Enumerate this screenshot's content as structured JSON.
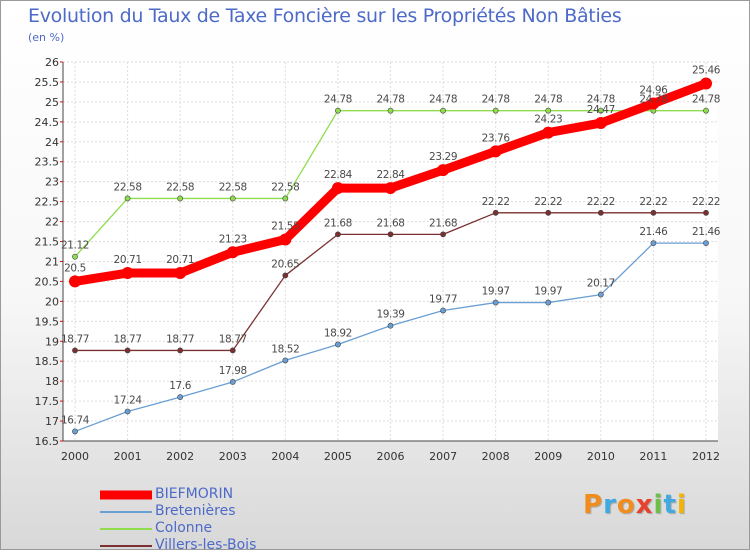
{
  "chart_data": {
    "type": "line",
    "title": "Evolution du Taux de Taxe Foncière sur les Propriétés Non Bâties",
    "ylabel": "(en %)",
    "xlabel": "",
    "ylim": [
      16.5,
      26
    ],
    "yticks": [
      "16.5",
      "17",
      "17.5",
      "18",
      "18.5",
      "19",
      "19.5",
      "20",
      "20.5",
      "21",
      "21.5",
      "22",
      "22.5",
      "23",
      "23.5",
      "24",
      "24.5",
      "25",
      "25.5",
      "26"
    ],
    "categories": [
      "2000",
      "2001",
      "2002",
      "2003",
      "2004",
      "2005",
      "2006",
      "2007",
      "2008",
      "2009",
      "2010",
      "2011",
      "2012"
    ],
    "grid": true,
    "series": [
      {
        "name": "BIEFMORIN",
        "color": "#ff0000",
        "values": [
          20.5,
          20.71,
          20.71,
          21.23,
          21.55,
          22.84,
          22.84,
          23.29,
          23.76,
          24.23,
          24.47,
          24.96,
          25.46
        ],
        "labels": [
          "20.5",
          "20.71",
          "20.71",
          "21.23",
          "21.55",
          "22.84",
          "22.84",
          "23.29",
          "23.76",
          "24.23",
          "24.47",
          "24.96",
          "25.46"
        ]
      },
      {
        "name": "Bretenières",
        "color": "#6a9fd4",
        "values": [
          16.74,
          17.24,
          17.6,
          17.98,
          18.52,
          18.92,
          19.39,
          19.77,
          19.97,
          19.97,
          20.17,
          21.46,
          21.46
        ],
        "labels": [
          "16.74",
          "17.24",
          "17.6",
          "17.98",
          "18.52",
          "18.92",
          "19.39",
          "19.77",
          "19.97",
          "19.97",
          "20.17",
          "21.46",
          "21.46"
        ]
      },
      {
        "name": "Colonne",
        "color": "#8fdc4c",
        "values": [
          21.12,
          22.58,
          22.58,
          22.58,
          22.58,
          24.78,
          24.78,
          24.78,
          24.78,
          24.78,
          24.78,
          24.78,
          24.78
        ],
        "labels": [
          "21.12",
          "22.58",
          "22.58",
          "22.58",
          "22.58",
          "24.78",
          "24.78",
          "24.78",
          "24.78",
          "24.78",
          "24.78",
          "24.78",
          "24.78"
        ]
      },
      {
        "name": "Villers-les-Bois",
        "color": "#7a3030",
        "values": [
          18.77,
          18.77,
          18.77,
          18.77,
          20.65,
          21.68,
          21.68,
          21.68,
          22.22,
          22.22,
          22.22,
          22.22,
          22.22
        ],
        "labels": [
          "18.77",
          "18.77",
          "18.77",
          "18.77",
          "20.65",
          "21.68",
          "21.68",
          "21.68",
          "22.22",
          "22.22",
          "22.22",
          "22.22",
          "22.22"
        ]
      }
    ]
  },
  "legend": {
    "items": [
      {
        "label": "BIEFMORIN",
        "color": "#ff0000"
      },
      {
        "label": "Bretenières",
        "color": "#6a9fd4"
      },
      {
        "label": "Colonne",
        "color": "#8fdc4c"
      },
      {
        "label": "Villers-les-Bois",
        "color": "#7a3030"
      }
    ]
  },
  "logo": {
    "letters": [
      "P",
      "r",
      "o",
      "x",
      "i",
      "t",
      "i"
    ],
    "colors": [
      "#f28c1e",
      "#3fa9e0",
      "#f28c1e",
      "#e8412c",
      "#6cc04a",
      "#3fa9e0",
      "#f4b400"
    ]
  }
}
